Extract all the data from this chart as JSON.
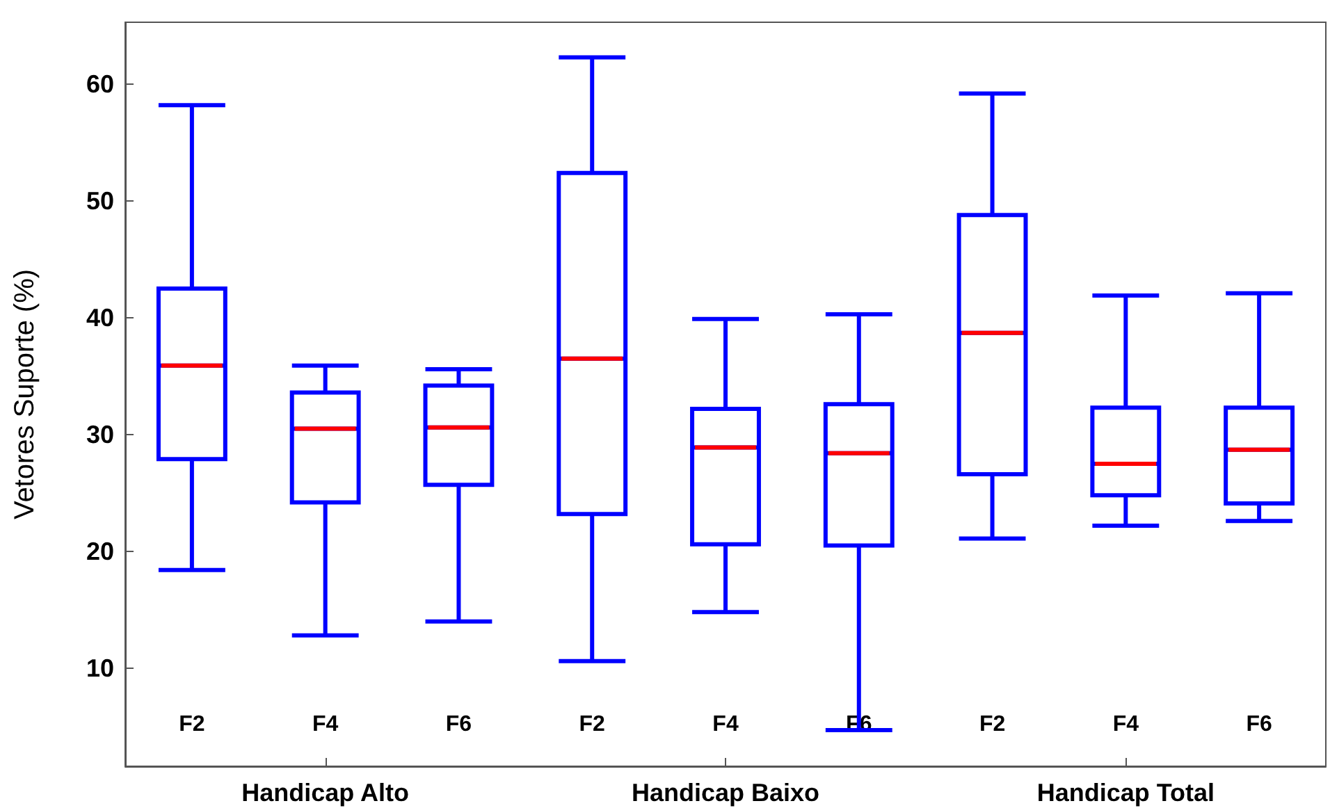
{
  "chart_data": {
    "type": "box",
    "ylabel": "Vetores Suporte (%)",
    "categories": [
      "F2",
      "F4",
      "F6",
      "F2",
      "F4",
      "F6",
      "F2",
      "F4",
      "F6"
    ],
    "annotations": [
      "Handicap Alto",
      "Handicap Baixo",
      "Handicap Total"
    ],
    "series": [
      {
        "color": "#0000ff",
        "boxes": [
          {
            "low": 18.4,
            "q1": 27.9,
            "median": 35.9,
            "q3": 42.5,
            "high": 58.2
          },
          {
            "low": 12.8,
            "q1": 24.2,
            "median": 30.5,
            "q3": 33.6,
            "high": 35.9
          },
          {
            "low": 14.0,
            "q1": 25.7,
            "median": 30.6,
            "q3": 34.2,
            "high": 35.6
          },
          {
            "low": 10.6,
            "q1": 23.2,
            "median": 36.5,
            "q3": 52.4,
            "high": 62.3
          },
          {
            "low": 14.8,
            "q1": 20.6,
            "median": 28.9,
            "q3": 32.2,
            "high": 39.9
          },
          {
            "low": 4.7,
            "q1": 20.5,
            "median": 28.4,
            "q3": 32.6,
            "high": 40.3
          },
          {
            "low": 21.1,
            "q1": 26.6,
            "median": 38.7,
            "q3": 48.8,
            "high": 59.2
          },
          {
            "low": 22.2,
            "q1": 24.8,
            "median": 27.5,
            "q3": 32.3,
            "high": 41.9
          },
          {
            "low": 22.6,
            "q1": 24.1,
            "median": 28.7,
            "q3": 32.3,
            "high": 42.1
          }
        ]
      }
    ],
    "ylim": [
      1.6,
      65.3
    ],
    "yticks": [
      10,
      20,
      30,
      40,
      50,
      60
    ],
    "grid": false
  }
}
